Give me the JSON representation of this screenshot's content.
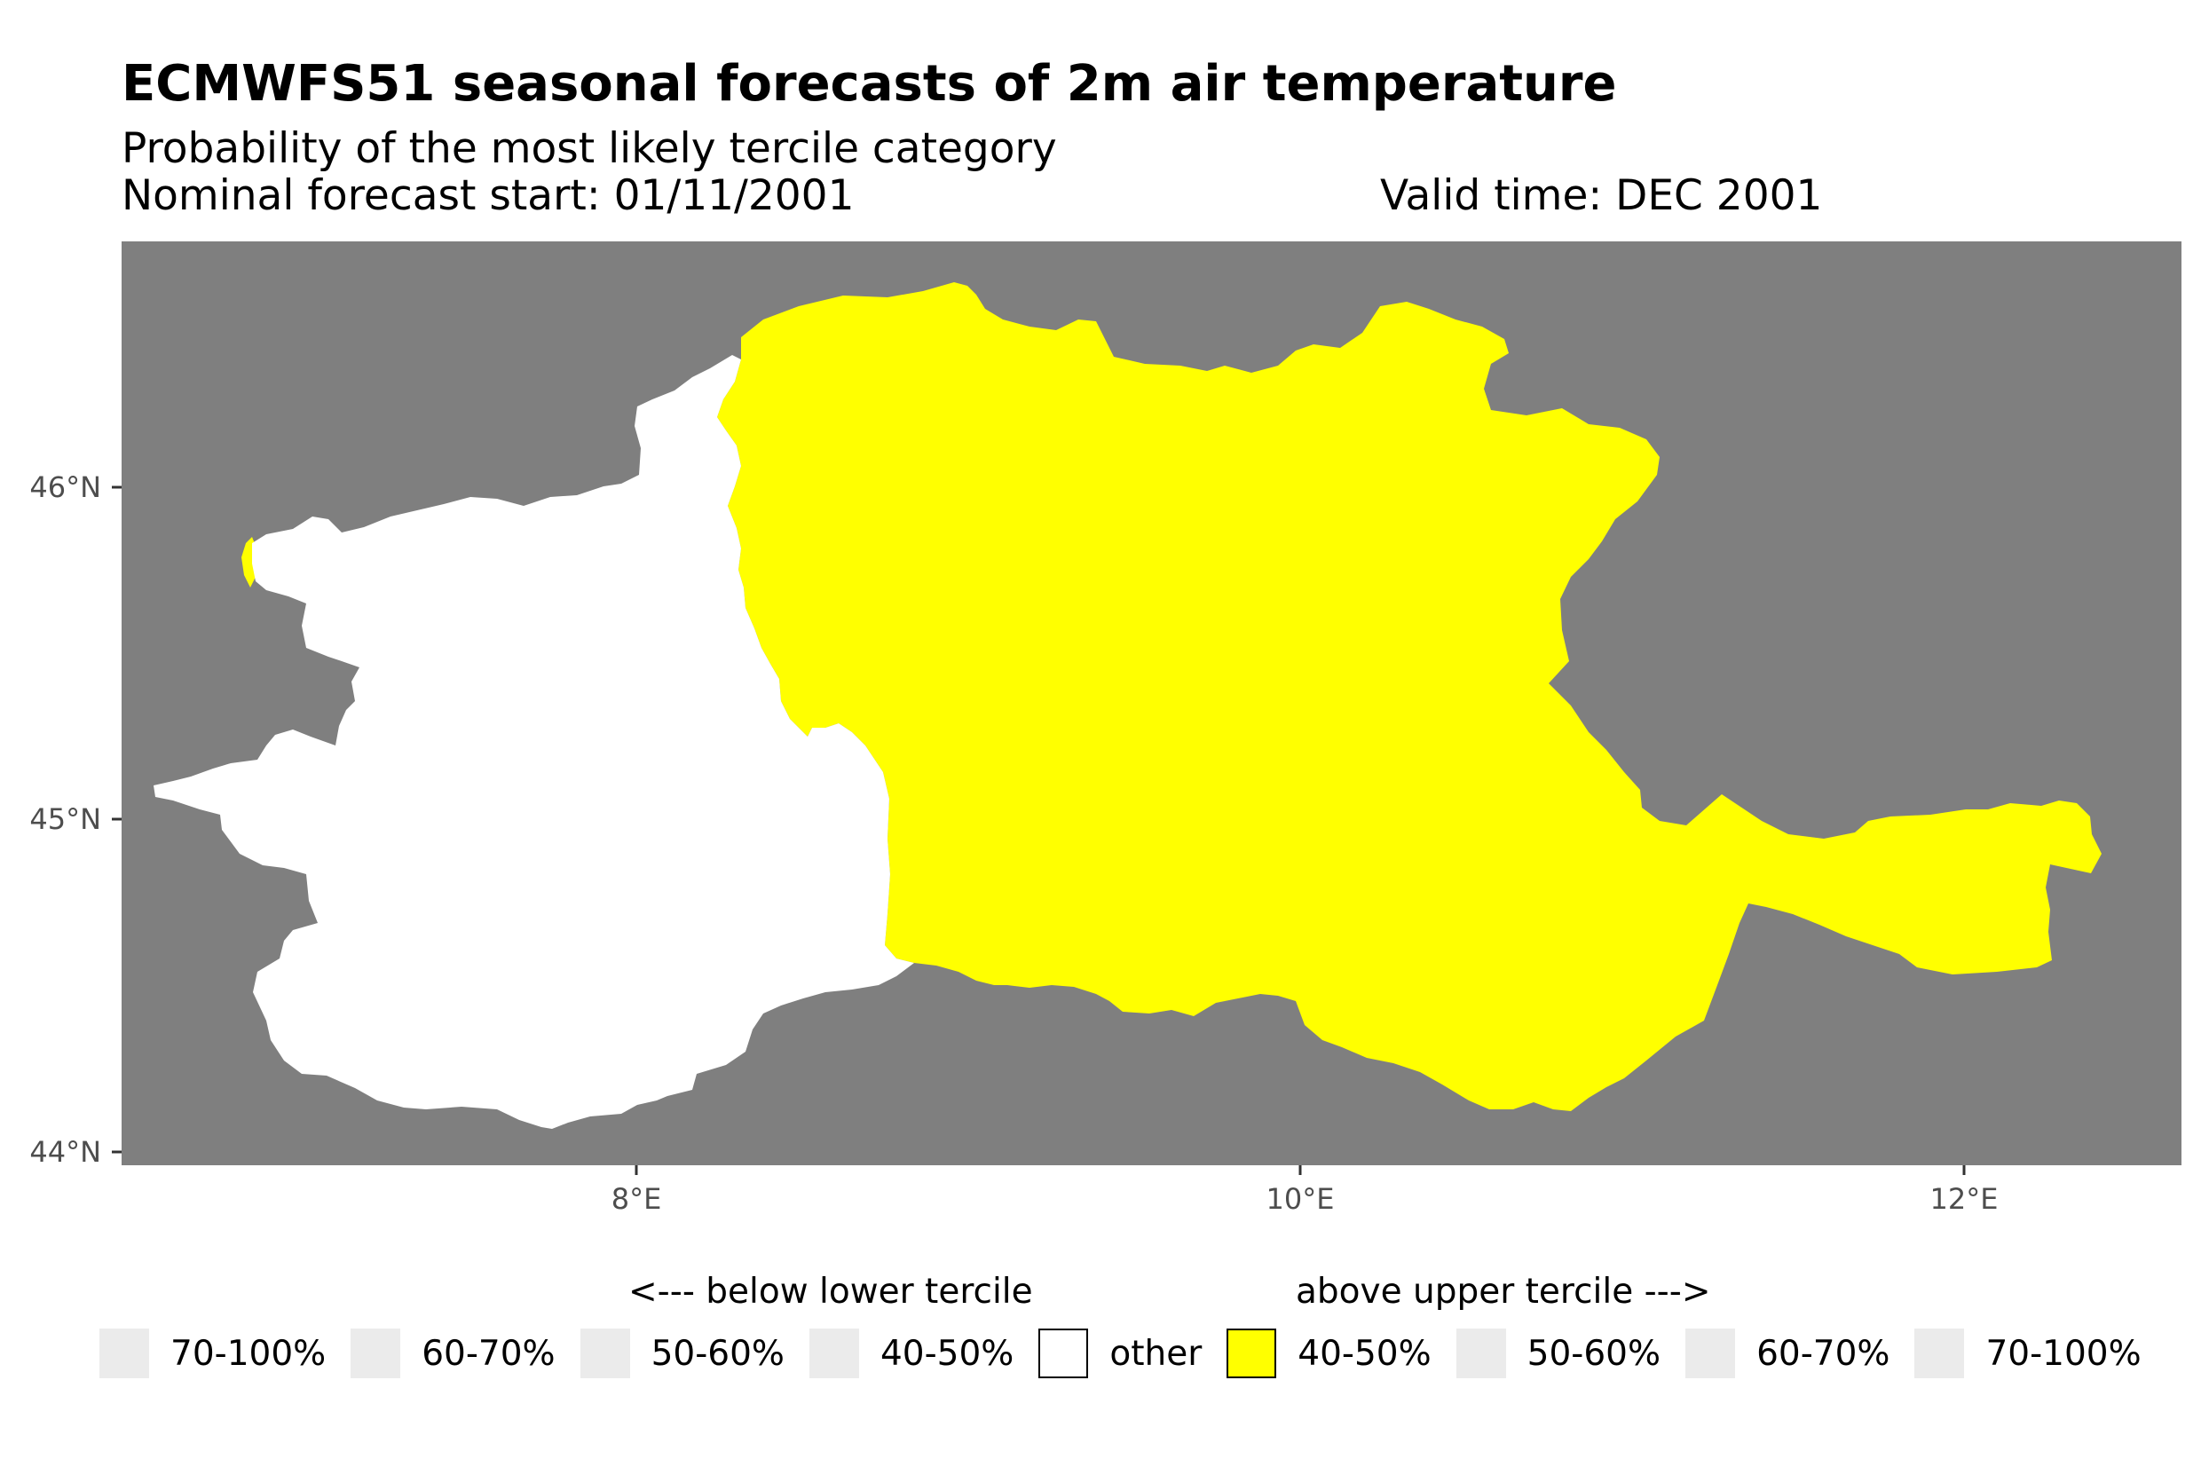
{
  "title": "ECMWFS51 seasonal forecasts of 2m air temperature",
  "subtitle": "Probability of the most likely tercile category",
  "forecast_start": "Nominal forecast start: 01/11/2001",
  "valid_time": "Valid time: DEC 2001",
  "map": {
    "background_color": "#7f7f7f",
    "y_ticks": [
      "46°N",
      "45°N",
      "44°N"
    ],
    "x_ticks": [
      "8°E",
      "10°E",
      "12°E"
    ],
    "regions": [
      {
        "category": "other",
        "color": "#ffffff"
      },
      {
        "category": "above upper tercile 40-50%",
        "color": "#ffff00"
      }
    ]
  },
  "legend": {
    "below_heading": "<--- below lower tercile",
    "above_heading": "above upper tercile --->",
    "items": [
      {
        "label": "70-100%",
        "color": "#ebebeb"
      },
      {
        "label": "60-70%",
        "color": "#ebebeb"
      },
      {
        "label": "50-60%",
        "color": "#ebebeb"
      },
      {
        "label": "40-50%",
        "color": "#ebebeb"
      },
      {
        "label": "other",
        "color": "#ffffff"
      },
      {
        "label": "40-50%",
        "color": "#ffff00"
      },
      {
        "label": "50-60%",
        "color": "#ebebeb"
      },
      {
        "label": "60-70%",
        "color": "#ebebeb"
      },
      {
        "label": "70-100%",
        "color": "#ebebeb"
      }
    ]
  }
}
